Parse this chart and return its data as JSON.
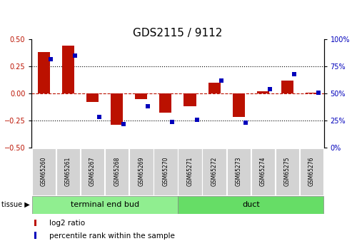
{
  "title": "GDS2115 / 9112",
  "samples": [
    "GSM65260",
    "GSM65261",
    "GSM65267",
    "GSM65268",
    "GSM65269",
    "GSM65270",
    "GSM65271",
    "GSM65272",
    "GSM65273",
    "GSM65274",
    "GSM65275",
    "GSM65276"
  ],
  "log2_ratio": [
    0.38,
    0.44,
    -0.08,
    -0.29,
    -0.05,
    -0.18,
    -0.12,
    0.1,
    -0.22,
    0.02,
    0.12,
    0.01
  ],
  "percentile_rank": [
    82,
    85,
    28,
    22,
    38,
    24,
    26,
    62,
    23,
    54,
    68,
    51
  ],
  "groups": [
    {
      "label": "terminal end bud",
      "start": 0,
      "end": 6,
      "color": "#90EE90"
    },
    {
      "label": "duct",
      "start": 6,
      "end": 12,
      "color": "#66DD66"
    }
  ],
  "bar_color_red": "#BB1100",
  "bar_color_blue": "#0000BB",
  "left_ylim": [
    -0.5,
    0.5
  ],
  "right_ylim": [
    0,
    100
  ],
  "left_yticks": [
    -0.5,
    -0.25,
    0.0,
    0.25,
    0.5
  ],
  "right_yticks": [
    0,
    25,
    50,
    75,
    100
  ],
  "right_yticklabels": [
    "0%",
    "25%",
    "50%",
    "75%",
    "100%"
  ],
  "dotted_lines": [
    -0.25,
    0.25
  ],
  "bar_width": 0.5,
  "legend_log2_label": "log2 ratio",
  "legend_pct_label": "percentile rank within the sample",
  "tissue_label": "tissue",
  "sample_box_color": "#D3D3D3",
  "title_fontsize": 11,
  "tick_fontsize": 7,
  "sample_fontsize": 5.5,
  "group_fontsize": 8,
  "legend_fontsize": 7.5
}
